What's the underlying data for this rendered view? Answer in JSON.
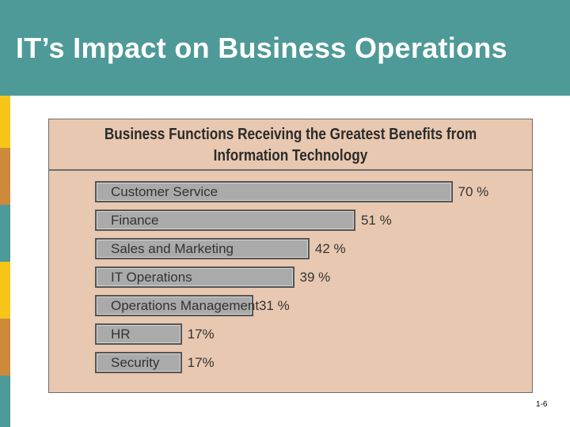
{
  "header": {
    "title": "IT’s Impact on Business Operations"
  },
  "chart_data": {
    "type": "bar",
    "orientation": "horizontal",
    "title_lines": [
      "Business Functions Receiving the Greatest Benefits from",
      "Information Technology"
    ],
    "categories": [
      "Customer Service",
      "Finance",
      "Sales and Marketing",
      "IT Operations",
      "Operations Management",
      "HR",
      "Security"
    ],
    "values": [
      70,
      51,
      42,
      39,
      31,
      17,
      17
    ],
    "value_labels": [
      "70 %",
      "51 %",
      "42 %",
      "39 %",
      "31 %",
      "17%",
      "17%"
    ],
    "unit": "%",
    "xlim": [
      0,
      100
    ],
    "grid": false,
    "legend": "none"
  },
  "footer": {
    "slide_number": "1-6"
  },
  "colors": {
    "header_bg": "#4e9a98",
    "chart_bg": "#e8c8b0",
    "bar_fill": "#aaaaaa",
    "stripe_gold": "#f5c518",
    "stripe_orange": "#cc8a3a",
    "stripe_teal": "#4e9a98"
  }
}
